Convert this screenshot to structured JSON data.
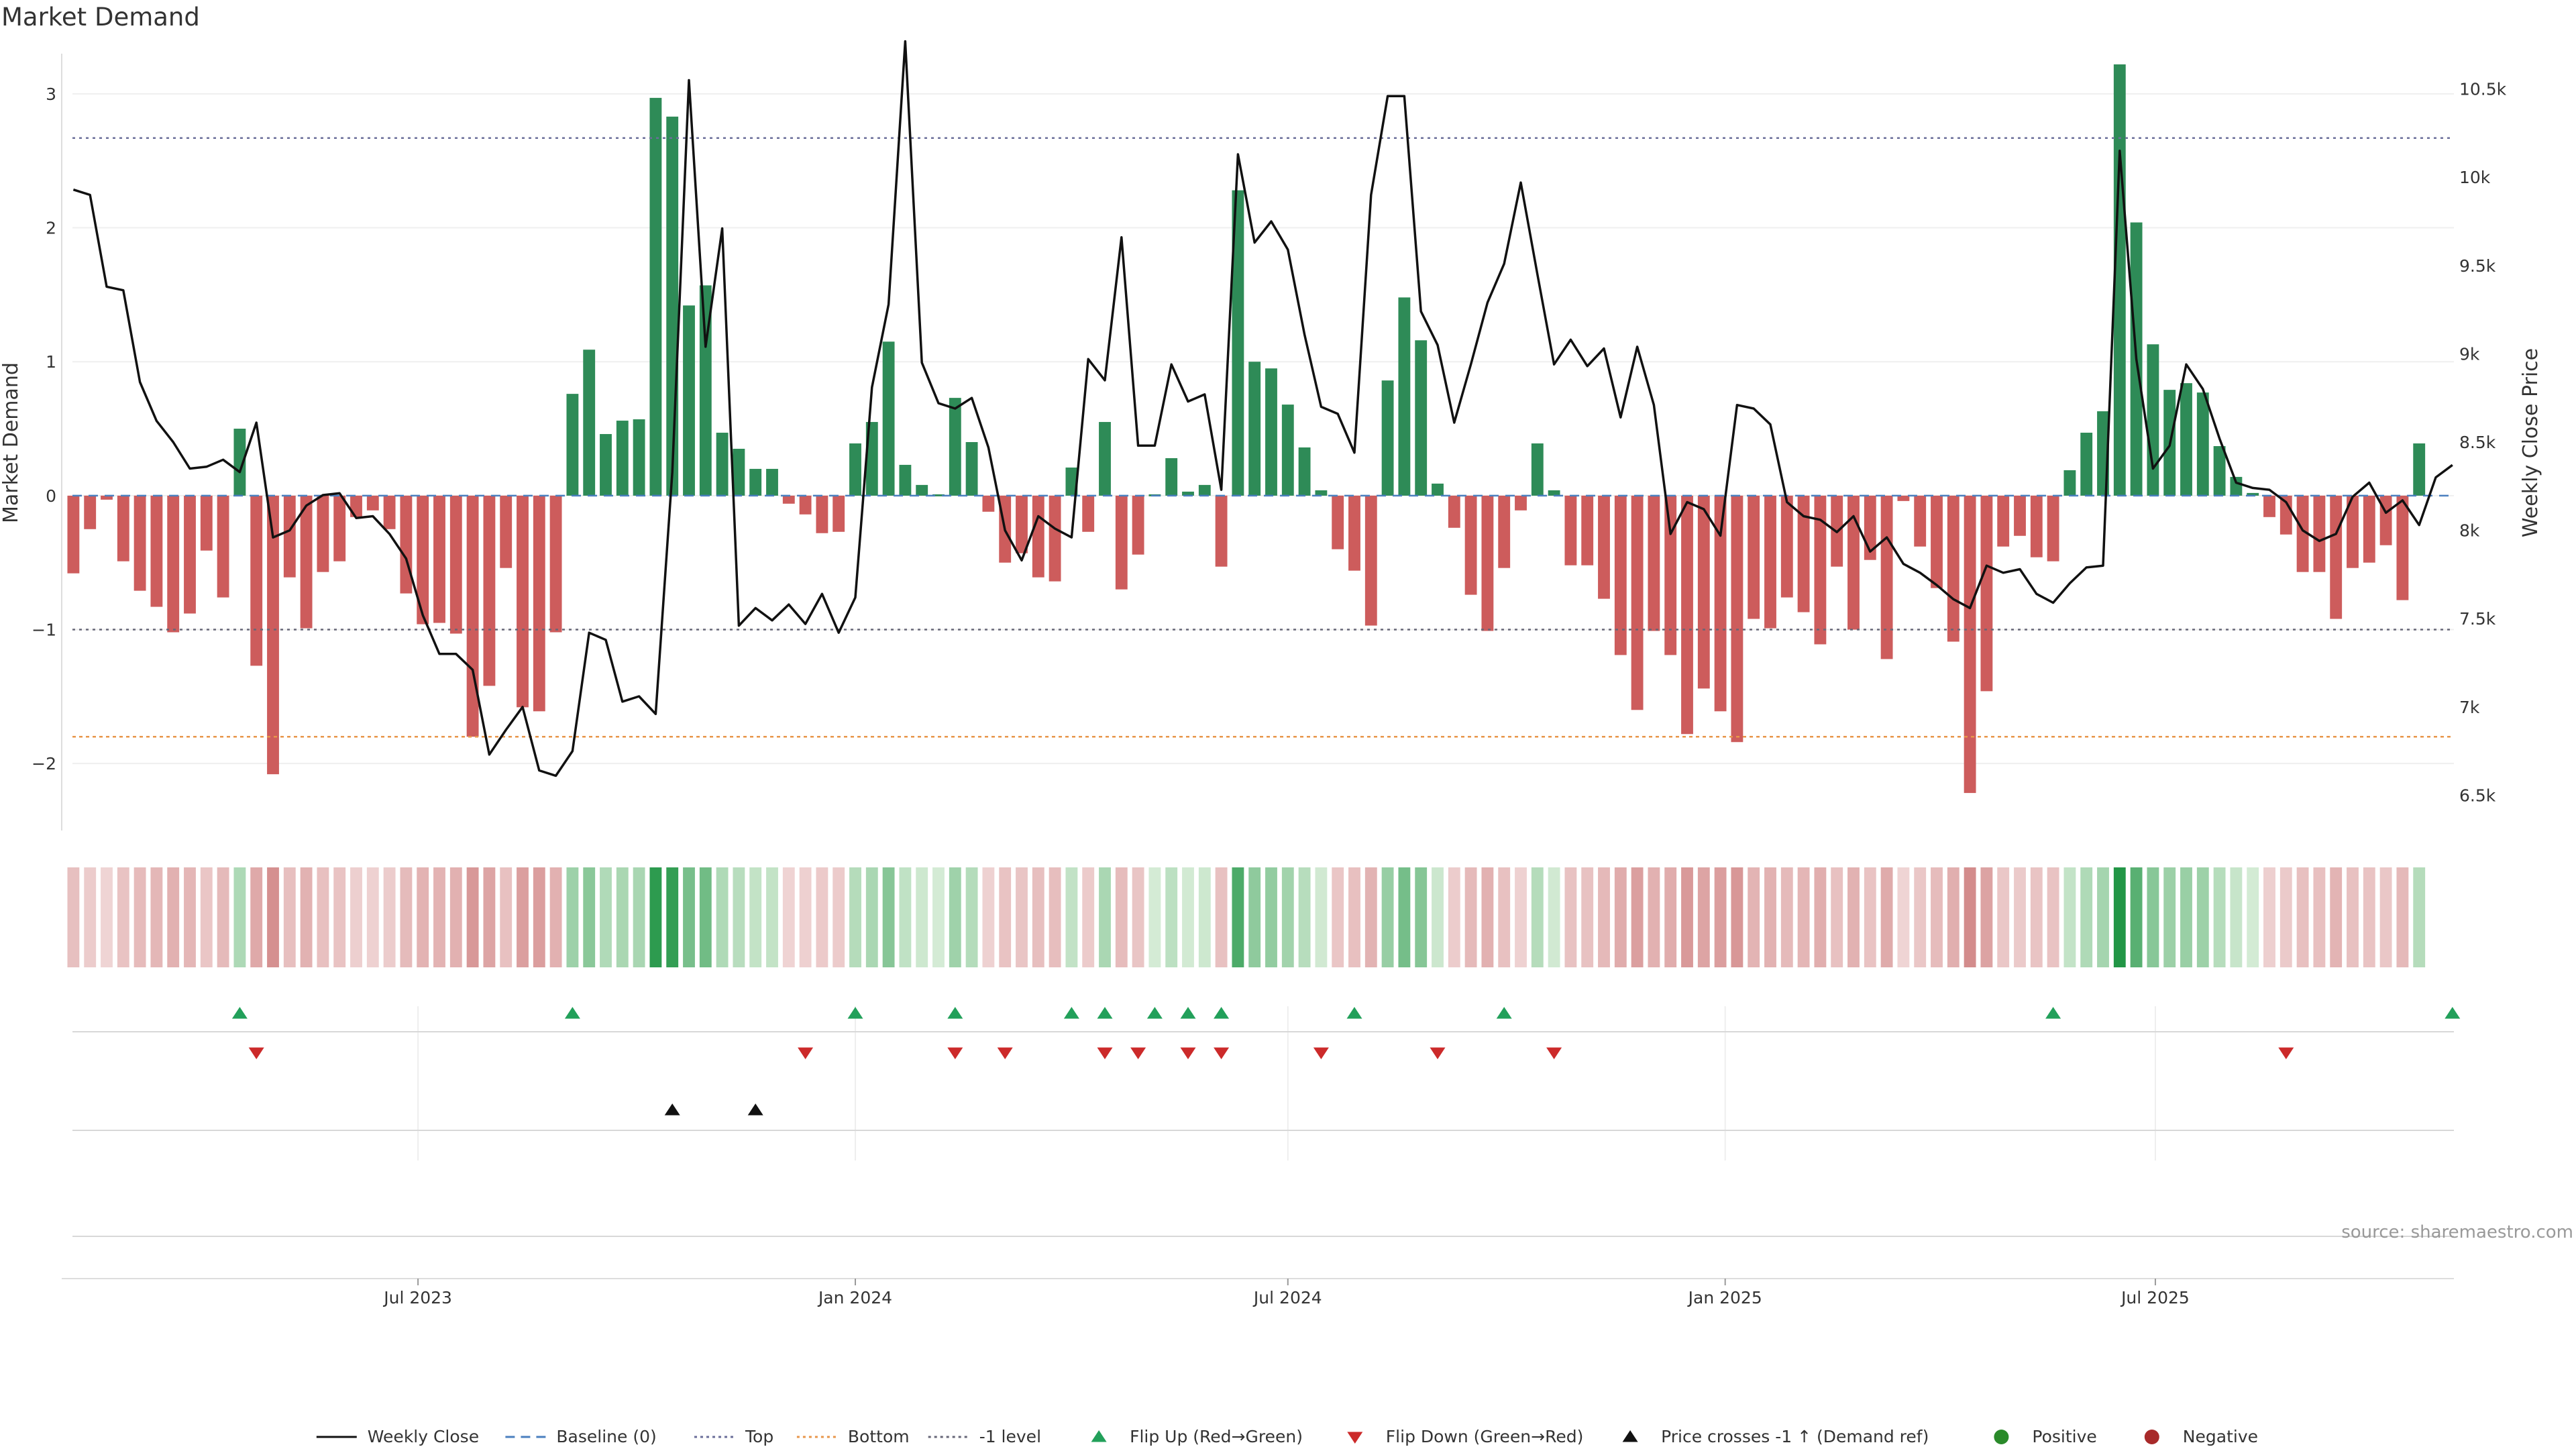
{
  "chart_data": {
    "type": "bar",
    "title": "Market Demand",
    "source_note": "source: sharemaestro.com",
    "ylabel": "Market Demand",
    "y2label": "Weekly Close Price",
    "ylim": [
      -2.5,
      3.3
    ],
    "y2lim": [
      6300,
      10700
    ],
    "yticks": [
      -2,
      -1,
      0,
      1,
      2,
      3
    ],
    "y2ticks": [
      6500,
      7000,
      7500,
      8000,
      8500,
      9000,
      9500,
      10000,
      10500
    ],
    "y2ticklabels": [
      "6.5k",
      "7k",
      "7.5k",
      "8k",
      "8.5k",
      "9k",
      "9.5k",
      "10k",
      "10.5k"
    ],
    "x_range": [
      "2023-02-06",
      "2025-10-27"
    ],
    "xticks": [
      {
        "date": "2023-07-01",
        "label": "Jul 2023"
      },
      {
        "date": "2024-01-01",
        "label": "Jan 2024"
      },
      {
        "date": "2024-07-01",
        "label": "Jul 2024"
      },
      {
        "date": "2025-01-01",
        "label": "Jan 2025"
      },
      {
        "date": "2025-07-01",
        "label": "Jul 2025"
      }
    ],
    "start_week": "2023-02-06",
    "reference_lines": [
      {
        "name": "Top",
        "value": 2.67,
        "color": "#6b6f9a"
      },
      {
        "name": "Bottom",
        "value": -1.8,
        "color": "#e8964a"
      },
      {
        "name": "-1 level",
        "value": -1,
        "color": "#666677"
      },
      {
        "name": "Baseline (0)",
        "value": 0,
        "color": "#4a7fbf"
      }
    ],
    "demand": [
      -0.58,
      -0.25,
      -0.03,
      -0.49,
      -0.71,
      -0.83,
      -1.02,
      -0.88,
      -0.41,
      -0.76,
      0.5,
      -1.27,
      -2.08,
      -0.61,
      -0.99,
      -0.57,
      -0.49,
      -0.16,
      -0.11,
      -0.25,
      -0.73,
      -0.96,
      -0.95,
      -1.03,
      -1.8,
      -1.42,
      -0.54,
      -1.58,
      -1.61,
      -1.02,
      0.76,
      1.09,
      0.46,
      0.56,
      0.57,
      2.97,
      2.83,
      1.42,
      1.57,
      0.47,
      0.35,
      0.2,
      0.2,
      -0.06,
      -0.14,
      -0.28,
      -0.27,
      0.39,
      0.55,
      1.15,
      0.23,
      0.08,
      0.01,
      0.73,
      0.4,
      -0.12,
      -0.5,
      -0.43,
      -0.61,
      -0.64,
      0.21,
      -0.27,
      0.55,
      -0.7,
      -0.44,
      0.01,
      0.28,
      0.03,
      0.08,
      -0.53,
      2.28,
      1.0,
      0.95,
      0.68,
      0.36,
      0.04,
      -0.4,
      -0.56,
      -0.97,
      0.86,
      1.48,
      1.16,
      0.09,
      -0.24,
      -0.74,
      -1.01,
      -0.54,
      -0.11,
      0.39,
      0.04,
      -0.52,
      -0.52,
      -0.77,
      -1.19,
      -1.6,
      -1.01,
      -1.19,
      -1.78,
      -1.44,
      -1.61,
      -1.84,
      -0.92,
      -0.99,
      -0.76,
      -0.87,
      -1.11,
      -0.53,
      -1.0,
      -0.48,
      -1.22,
      -0.04,
      -0.38,
      -0.69,
      -1.09,
      -2.22,
      -1.46,
      -0.38,
      -0.3,
      -0.46,
      -0.49,
      0.19,
      0.47,
      0.63,
      3.22,
      2.04,
      1.13,
      0.79,
      0.84,
      0.77,
      0.37,
      0.14,
      0.02,
      -0.16,
      -0.29,
      -0.57,
      -0.57,
      -0.92,
      -0.54,
      -0.5,
      -0.37,
      -0.78,
      0.39
    ],
    "weekly_close": [
      9930,
      9900,
      9380,
      9360,
      8840,
      8620,
      8500,
      8350,
      8360,
      8400,
      8330,
      8610,
      7960,
      8000,
      8140,
      8200,
      8210,
      8070,
      8080,
      7980,
      7840,
      7520,
      7300,
      7300,
      7210,
      6730,
      6870,
      7000,
      6640,
      6610,
      6750,
      7420,
      7380,
      7030,
      7060,
      6960,
      8330,
      10550,
      9040,
      9710,
      7460,
      7560,
      7490,
      7580,
      7470,
      7640,
      7420,
      7620,
      8810,
      9280,
      10770,
      8950,
      8720,
      8690,
      8750,
      8470,
      8000,
      7830,
      8080,
      8010,
      7960,
      8970,
      8850,
      9660,
      8480,
      8480,
      8940,
      8730,
      8770,
      8230,
      10130,
      9630,
      9750,
      9590,
      9110,
      8700,
      8660,
      8440,
      9900,
      10460,
      10460,
      9240,
      9050,
      8610,
      8940,
      9290,
      9510,
      9970,
      9450,
      8940,
      9080,
      8930,
      9030,
      8640,
      9040,
      8710,
      7980,
      8160,
      8120,
      7970,
      8710,
      8690,
      8600,
      8160,
      8080,
      8060,
      7990,
      8080,
      7880,
      7960,
      7810,
      7760,
      7690,
      7610,
      7560,
      7800,
      7760,
      7780,
      7640,
      7590,
      7700,
      7790,
      7800,
      10150,
      8970,
      8350,
      8480,
      8940,
      8800,
      8520,
      8270,
      8240,
      8230,
      8160,
      8000,
      7940,
      7980,
      8190,
      8270,
      8100,
      8170,
      8030,
      8300,
      8370
    ],
    "flip_up_weeks": [
      10,
      30,
      47,
      53,
      60,
      62,
      65,
      67,
      69,
      77,
      86,
      119,
      143
    ],
    "flip_down_weeks": [
      11,
      44,
      53,
      56,
      62,
      64,
      67,
      69,
      75,
      82,
      89,
      133
    ],
    "price_cross_weeks": [
      36,
      41
    ],
    "legend": [
      {
        "label": "Weekly Close",
        "icon": "line-solid",
        "color": "#111111"
      },
      {
        "label": "Baseline (0)",
        "icon": "line-dashed",
        "color": "#4a7fbf"
      },
      {
        "label": "Top",
        "icon": "line-dotted",
        "color": "#6b6f9a"
      },
      {
        "label": "Bottom",
        "icon": "line-dotted",
        "color": "#e8964a"
      },
      {
        "label": "-1 level",
        "icon": "line-dotted",
        "color": "#666677"
      },
      {
        "label": "Flip Up (Red→Green)",
        "icon": "triangle-up",
        "color": "#22a05a"
      },
      {
        "label": "Flip Down (Green→Red)",
        "icon": "triangle-down",
        "color": "#cc2a2a"
      },
      {
        "label": "Price crosses -1 ↑ (Demand ref)",
        "icon": "triangle-up",
        "color": "#111111"
      },
      {
        "label": "Positive",
        "icon": "circle",
        "color": "#2a8a2a"
      },
      {
        "label": "Negative",
        "icon": "circle",
        "color": "#a82a2a"
      }
    ],
    "colors": {
      "positive_bar": "#2e8b57",
      "negative_bar": "#cd5c5c",
      "price_line": "#111111",
      "flip_up": "#22a05a",
      "flip_down": "#cc2a2a",
      "price_cross": "#111111"
    }
  }
}
